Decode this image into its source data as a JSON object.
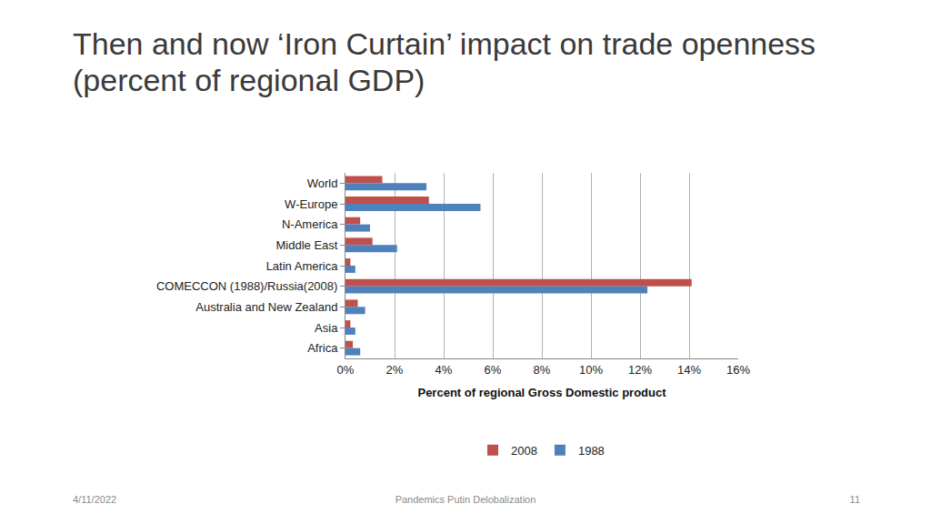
{
  "slide_title": "Then and now ‘Iron Curtain’ impact on trade openness (percent of regional GDP)",
  "footer_date": "4/11/2022",
  "footer_text": "Pandemics Putin Delobalization",
  "page_number": "11",
  "chart_data": {
    "type": "bar",
    "orientation": "horizontal",
    "categories": [
      "World",
      "W-Europe",
      "N-America",
      "Middle East",
      "Latin America",
      "COMECCON (1988)/Russia(2008)",
      "Australia and New Zealand",
      "Asia",
      "Africa"
    ],
    "series": [
      {
        "name": "2008",
        "color": "#c0504d",
        "values": [
          1.5,
          3.4,
          0.6,
          1.1,
          0.2,
          14.1,
          0.5,
          0.2,
          0.3
        ]
      },
      {
        "name": "1988",
        "color": "#4f81bd",
        "values": [
          3.3,
          5.5,
          1.0,
          2.1,
          0.4,
          12.3,
          0.8,
          0.4,
          0.6
        ]
      }
    ],
    "xlabel": "Percent of regional Gross Domestic product",
    "xlim": [
      0,
      16
    ],
    "xticks": [
      {
        "value": 0,
        "label": "0%"
      },
      {
        "value": 2,
        "label": "2%"
      },
      {
        "value": 4,
        "label": "4%"
      },
      {
        "value": 6,
        "label": "6%"
      },
      {
        "value": 8,
        "label": "8%"
      },
      {
        "value": 10,
        "label": "10%"
      },
      {
        "value": 12,
        "label": "12%"
      },
      {
        "value": 14,
        "label": "14%"
      },
      {
        "value": 16,
        "label": "16%"
      }
    ],
    "grid": true,
    "legend": "bottom"
  }
}
